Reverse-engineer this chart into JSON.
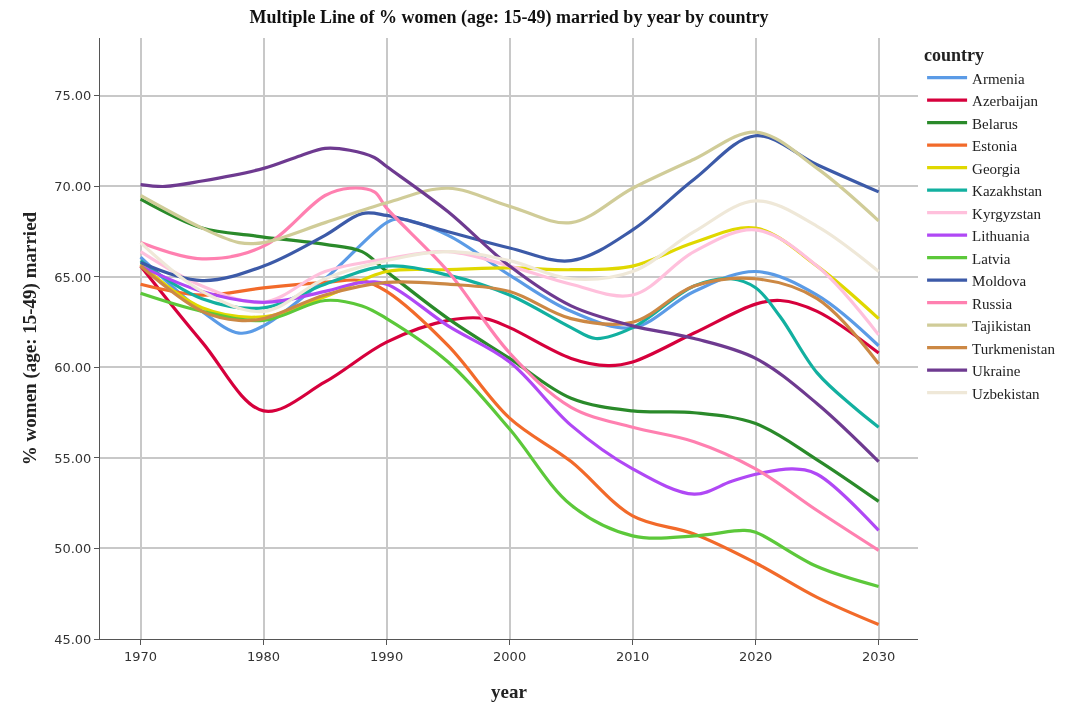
{
  "chart_data": {
    "type": "line",
    "title": "Multiple Line of % women (age: 15-49) married by year by country",
    "xlabel": "year",
    "ylabel": "% women (age: 15-49) married",
    "legend_title": "country",
    "xlim": [
      1966.7,
      2033.2
    ],
    "xticks": [
      1970,
      1980,
      1990,
      2000,
      2010,
      2020,
      2030
    ],
    "ylim": [
      45,
      78.2
    ],
    "yticks": [
      {
        "value": 45,
        "label": "45.00"
      },
      {
        "value": 50,
        "label": "50.00"
      },
      {
        "value": 55,
        "label": "55.00"
      },
      {
        "value": 60,
        "label": "60.00"
      },
      {
        "value": 65,
        "label": "65.00"
      },
      {
        "value": 70,
        "label": "70.00"
      },
      {
        "value": 75,
        "label": "75.00"
      }
    ],
    "grid": true,
    "legend": "right",
    "marker": "none",
    "line_style": "solid",
    "series": [
      {
        "name": "Armenia",
        "color": "#5b9be6",
        "x": [
          1970,
          1975,
          1978,
          1980,
          1985,
          1990,
          1991,
          1995,
          2000,
          2005,
          2010,
          2015,
          2020,
          2025,
          2030
        ],
        "values": [
          66.1,
          63.1,
          61.9,
          62.3,
          64.9,
          68.0,
          68.2,
          67.3,
          65.1,
          63.1,
          62.2,
          64.2,
          65.3,
          64.0,
          61.2
        ]
      },
      {
        "name": "Azerbaijan",
        "color": "#d6003c",
        "x": [
          1970,
          1975,
          1980,
          1985,
          1990,
          1995,
          1998,
          2000,
          2005,
          2008,
          2010,
          2015,
          2020,
          2022,
          2025,
          2030
        ],
        "values": [
          65.6,
          61.4,
          57.6,
          59.2,
          61.4,
          62.6,
          62.7,
          62.2,
          60.5,
          60.1,
          60.3,
          61.9,
          63.5,
          63.7,
          63.1,
          60.8
        ]
      },
      {
        "name": "Belarus",
        "color": "#2a8a2a",
        "x": [
          1970,
          1975,
          1979,
          1980,
          1985,
          1988,
          1990,
          1995,
          2000,
          2005,
          2010,
          2015,
          2020,
          2025,
          2030
        ],
        "values": [
          69.3,
          67.7,
          67.3,
          67.2,
          66.8,
          66.4,
          65.3,
          62.7,
          60.5,
          58.3,
          57.6,
          57.5,
          56.9,
          54.9,
          52.6
        ]
      },
      {
        "name": "Estonia",
        "color": "#f26a2a",
        "x": [
          1970,
          1975,
          1980,
          1985,
          1988,
          1990,
          1995,
          2000,
          2005,
          2010,
          2015,
          2020,
          2025,
          2030
        ],
        "values": [
          64.6,
          64.0,
          64.4,
          64.7,
          64.8,
          64.2,
          61.2,
          57.2,
          54.8,
          51.8,
          50.8,
          49.2,
          47.3,
          45.8
        ]
      },
      {
        "name": "Georgia",
        "color": "#e0d800",
        "x": [
          1970,
          1975,
          1980,
          1985,
          1990,
          1995,
          2000,
          2005,
          2010,
          2015,
          2020,
          2025,
          2030
        ],
        "values": [
          65.7,
          63.3,
          62.8,
          63.9,
          65.3,
          65.4,
          65.5,
          65.4,
          65.6,
          66.9,
          67.7,
          65.6,
          62.7
        ]
      },
      {
        "name": "Kazakhstan",
        "color": "#12b0a0",
        "x": [
          1970,
          1975,
          1980,
          1985,
          1990,
          1995,
          2000,
          2005,
          2007,
          2010,
          2015,
          2018,
          2020,
          2022,
          2025,
          2028,
          2030
        ],
        "values": [
          65.9,
          63.8,
          63.3,
          64.6,
          65.6,
          65.1,
          64.0,
          62.2,
          61.6,
          62.2,
          64.5,
          64.9,
          64.4,
          62.8,
          59.7,
          57.8,
          56.7
        ]
      },
      {
        "name": "Kyrgyzstan",
        "color": "#ffc0dc",
        "x": [
          1970,
          1975,
          1980,
          1985,
          1990,
          1995,
          2000,
          2005,
          2010,
          2015,
          2020,
          2025,
          2030
        ],
        "values": [
          66.4,
          64.5,
          63.6,
          65.3,
          66.0,
          66.4,
          65.6,
          64.6,
          64.0,
          66.4,
          67.6,
          65.6,
          61.8
        ]
      },
      {
        "name": "Lithuania",
        "color": "#b048f5",
        "x": [
          1970,
          1975,
          1980,
          1985,
          1988,
          1990,
          1995,
          2000,
          2005,
          2010,
          2015,
          2018,
          2020,
          2023,
          2025,
          2030
        ],
        "values": [
          65.6,
          64.2,
          63.6,
          64.2,
          64.7,
          64.6,
          62.3,
          60.3,
          56.8,
          54.4,
          53.0,
          53.7,
          54.1,
          54.4,
          54.1,
          51.0
        ]
      },
      {
        "name": "Latvia",
        "color": "#5cc83a",
        "x": [
          1970,
          1975,
          1980,
          1985,
          1988,
          1990,
          1995,
          2000,
          2005,
          2010,
          2015,
          2019,
          2020,
          2025,
          2030
        ],
        "values": [
          64.1,
          63.1,
          62.6,
          63.7,
          63.4,
          62.7,
          60.3,
          56.6,
          52.4,
          50.7,
          50.7,
          51.0,
          50.9,
          49.0,
          47.9
        ]
      },
      {
        "name": "Moldova",
        "color": "#3c5aa8",
        "x": [
          1970,
          1975,
          1980,
          1985,
          1988,
          1990,
          1995,
          2000,
          2005,
          2010,
          2015,
          2020,
          2025,
          2030
        ],
        "values": [
          65.8,
          64.8,
          65.6,
          67.3,
          68.5,
          68.4,
          67.5,
          66.6,
          65.9,
          67.6,
          70.4,
          72.8,
          71.2,
          69.7
        ]
      },
      {
        "name": "Russia",
        "color": "#ff80b0",
        "x": [
          1970,
          1975,
          1980,
          1985,
          1987,
          1989,
          1990,
          1995,
          2000,
          2005,
          2010,
          2015,
          2020,
          2025,
          2030
        ],
        "values": [
          66.9,
          66.0,
          66.7,
          69.5,
          69.9,
          69.7,
          68.8,
          65.3,
          60.8,
          57.8,
          56.7,
          55.9,
          54.4,
          52.1,
          49.9
        ]
      },
      {
        "name": "Tajikistan",
        "color": "#d0cc98",
        "x": [
          1970,
          1975,
          1978,
          1980,
          1985,
          1990,
          1995,
          2000,
          2005,
          2010,
          2015,
          2020,
          2025,
          2030
        ],
        "values": [
          69.5,
          67.7,
          66.9,
          66.9,
          68.0,
          69.1,
          69.9,
          68.9,
          68.0,
          69.9,
          71.5,
          73.0,
          71.0,
          68.1
        ]
      },
      {
        "name": "Turkmenistan",
        "color": "#cc8844",
        "x": [
          1970,
          1975,
          1978,
          1980,
          1985,
          1990,
          1995,
          2000,
          2005,
          2010,
          2015,
          2020,
          2025,
          2030
        ],
        "values": [
          65.6,
          63.1,
          62.6,
          62.7,
          64.0,
          64.7,
          64.6,
          64.2,
          62.7,
          62.5,
          64.5,
          64.9,
          63.8,
          60.2
        ]
      },
      {
        "name": "Ukraine",
        "color": "#6e3a90",
        "x": [
          1970,
          1972,
          1975,
          1980,
          1983,
          1985,
          1987,
          1989,
          1990,
          1995,
          2000,
          2005,
          2010,
          2015,
          2020,
          2025,
          2030
        ],
        "values": [
          70.1,
          70.0,
          70.3,
          71.0,
          71.7,
          72.1,
          72.0,
          71.6,
          71.1,
          68.6,
          65.6,
          63.4,
          62.3,
          61.6,
          60.5,
          58.0,
          54.8
        ]
      },
      {
        "name": "Uzbekistan",
        "color": "#efe8d8",
        "x": [
          1970,
          1975,
          1980,
          1985,
          1990,
          1995,
          2000,
          2005,
          2010,
          2015,
          2020,
          2025,
          2030
        ],
        "values": [
          66.9,
          64.2,
          63.1,
          64.9,
          65.9,
          66.4,
          65.9,
          64.9,
          65.3,
          67.5,
          69.2,
          67.8,
          65.3
        ]
      }
    ]
  }
}
